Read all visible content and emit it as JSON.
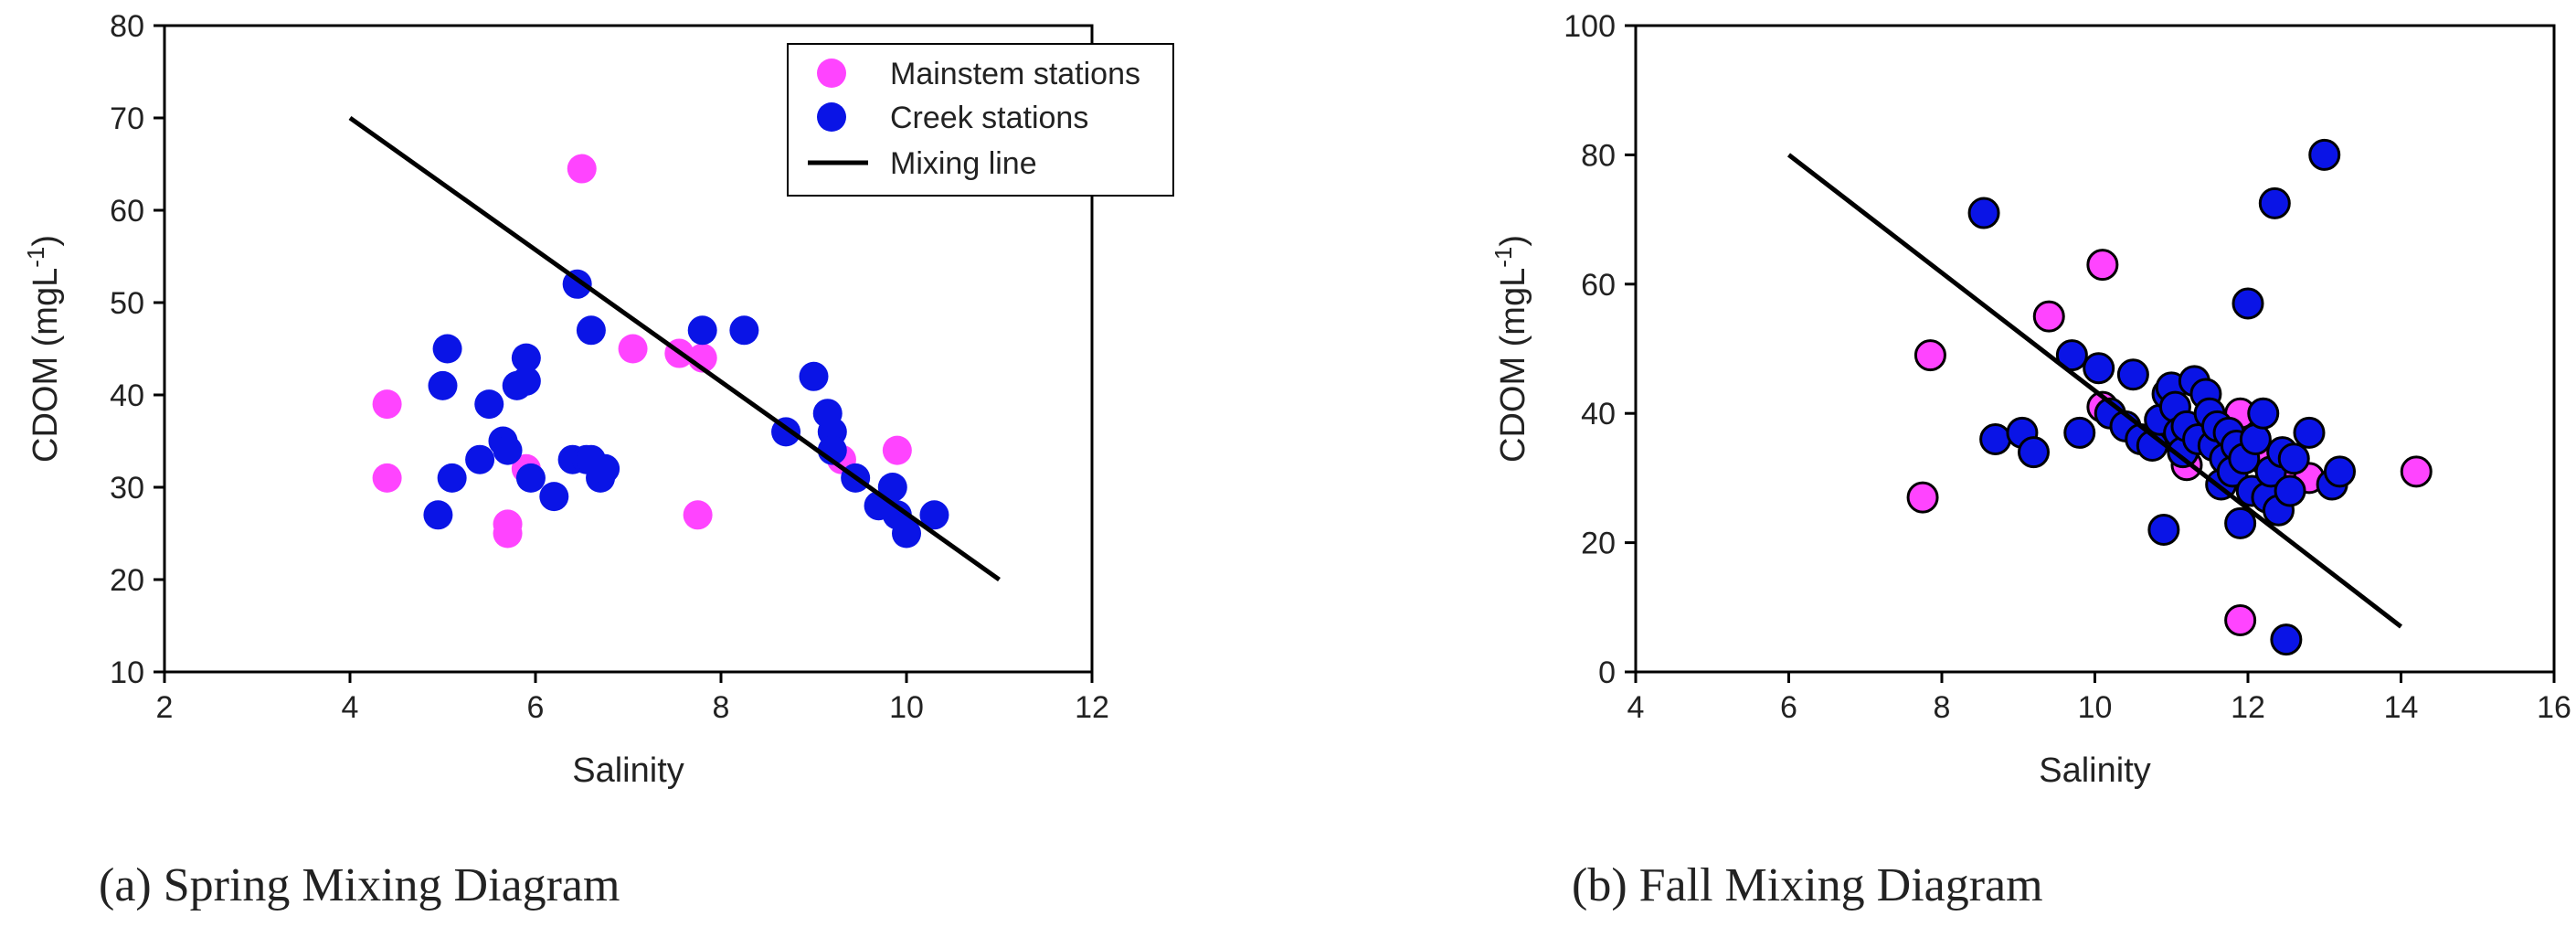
{
  "captions": [
    "(a) Spring Mixing Diagram",
    "(b) Fall Mixing Diagram"
  ],
  "colors": {
    "mainstem": "#ff44ff",
    "creek": "#0a14e6",
    "line": "#000000"
  },
  "chart_data": [
    {
      "type": "scatter",
      "caption": "(a) Spring Mixing Diagram",
      "xlabel": "Salinity",
      "ylabel": "CDOM (mgL",
      "ylabel_sup": "-1",
      "ylabel_suffix": ")",
      "xlim": [
        2,
        12
      ],
      "ylim": [
        10,
        80
      ],
      "xticks": [
        2,
        4,
        6,
        8,
        10,
        12
      ],
      "yticks": [
        10,
        20,
        30,
        40,
        50,
        60,
        70,
        80
      ],
      "grid": false,
      "legend": {
        "placement": "top-right",
        "entries": [
          "Mainstem stations",
          "Creek stations",
          "Mixing line"
        ]
      },
      "marker_outline": false,
      "series": [
        {
          "name": "Mainstem stations",
          "points": [
            [
              4.4,
              39
            ],
            [
              4.4,
              31
            ],
            [
              5.7,
              26
            ],
            [
              5.7,
              25
            ],
            [
              5.9,
              32
            ],
            [
              6.5,
              64.5
            ],
            [
              7.05,
              45
            ],
            [
              7.55,
              44.5
            ],
            [
              7.8,
              44
            ],
            [
              7.75,
              27
            ],
            [
              9.3,
              33
            ],
            [
              9.9,
              34
            ]
          ]
        },
        {
          "name": "Creek stations",
          "points": [
            [
              4.95,
              27
            ],
            [
              5.0,
              41
            ],
            [
              5.05,
              45
            ],
            [
              5.1,
              31
            ],
            [
              5.4,
              33
            ],
            [
              5.5,
              39
            ],
            [
              5.65,
              35
            ],
            [
              5.7,
              34
            ],
            [
              5.8,
              41
            ],
            [
              5.9,
              41.5
            ],
            [
              5.9,
              44
            ],
            [
              5.95,
              31
            ],
            [
              6.2,
              29
            ],
            [
              6.4,
              33
            ],
            [
              6.45,
              52
            ],
            [
              6.55,
              33
            ],
            [
              6.6,
              47
            ],
            [
              6.6,
              33
            ],
            [
              6.7,
              31
            ],
            [
              6.75,
              32
            ],
            [
              7.8,
              47
            ],
            [
              8.25,
              47
            ],
            [
              8.7,
              36
            ],
            [
              9.0,
              42
            ],
            [
              9.15,
              38
            ],
            [
              9.2,
              36
            ],
            [
              9.2,
              34
            ],
            [
              9.45,
              31
            ],
            [
              9.7,
              28
            ],
            [
              9.85,
              30
            ],
            [
              9.9,
              27
            ],
            [
              10.0,
              25
            ],
            [
              10.3,
              27
            ]
          ]
        },
        {
          "name": "Mixing line",
          "type": "line",
          "points": [
            [
              4,
              70
            ],
            [
              11,
              20
            ]
          ]
        }
      ]
    },
    {
      "type": "scatter",
      "caption": "(b) Fall Mixing Diagram",
      "xlabel": "Salinity",
      "ylabel": "CDOM (mgL",
      "ylabel_sup": "-1",
      "ylabel_suffix": ")",
      "xlim": [
        4,
        16
      ],
      "ylim": [
        0,
        100
      ],
      "xticks": [
        4,
        6,
        8,
        10,
        12,
        14,
        16
      ],
      "yticks": [
        0,
        20,
        40,
        60,
        80,
        100
      ],
      "grid": false,
      "marker_outline": true,
      "series": [
        {
          "name": "Mainstem stations",
          "points": [
            [
              7.75,
              27
            ],
            [
              7.85,
              49
            ],
            [
              9.4,
              55
            ],
            [
              10.1,
              63
            ],
            [
              10.1,
              41
            ],
            [
              11.2,
              32
            ],
            [
              11.9,
              40
            ],
            [
              11.9,
              8
            ],
            [
              12.2,
              33
            ],
            [
              12.6,
              30
            ],
            [
              12.8,
              30
            ],
            [
              14.2,
              31
            ]
          ]
        },
        {
          "name": "Creek stations",
          "points": [
            [
              8.55,
              71
            ],
            [
              8.7,
              36
            ],
            [
              9.05,
              37
            ],
            [
              9.2,
              34
            ],
            [
              9.7,
              49
            ],
            [
              9.8,
              37
            ],
            [
              10.05,
              47
            ],
            [
              10.2,
              40
            ],
            [
              10.4,
              38
            ],
            [
              10.5,
              46
            ],
            [
              10.6,
              36
            ],
            [
              10.75,
              35
            ],
            [
              10.85,
              39
            ],
            [
              10.9,
              22
            ],
            [
              10.95,
              43
            ],
            [
              11.0,
              44
            ],
            [
              11.05,
              41
            ],
            [
              11.1,
              37
            ],
            [
              11.15,
              34
            ],
            [
              11.2,
              38
            ],
            [
              11.3,
              45
            ],
            [
              11.35,
              36
            ],
            [
              11.45,
              43
            ],
            [
              11.5,
              40
            ],
            [
              11.55,
              35
            ],
            [
              11.6,
              38
            ],
            [
              11.65,
              29
            ],
            [
              11.7,
              33
            ],
            [
              11.75,
              37
            ],
            [
              11.8,
              31
            ],
            [
              11.85,
              35
            ],
            [
              11.9,
              23
            ],
            [
              11.95,
              33
            ],
            [
              12.0,
              57
            ],
            [
              12.05,
              28
            ],
            [
              12.1,
              36
            ],
            [
              12.2,
              40
            ],
            [
              12.25,
              27
            ],
            [
              12.3,
              31
            ],
            [
              12.35,
              72.5
            ],
            [
              12.4,
              25
            ],
            [
              12.45,
              34
            ],
            [
              12.5,
              5
            ],
            [
              12.55,
              28
            ],
            [
              12.6,
              33
            ],
            [
              12.8,
              37
            ],
            [
              13.0,
              80
            ],
            [
              13.1,
              29
            ],
            [
              13.2,
              31
            ]
          ]
        },
        {
          "name": "Mixing line",
          "type": "line",
          "points": [
            [
              6,
              80
            ],
            [
              14,
              7
            ]
          ]
        }
      ]
    }
  ]
}
